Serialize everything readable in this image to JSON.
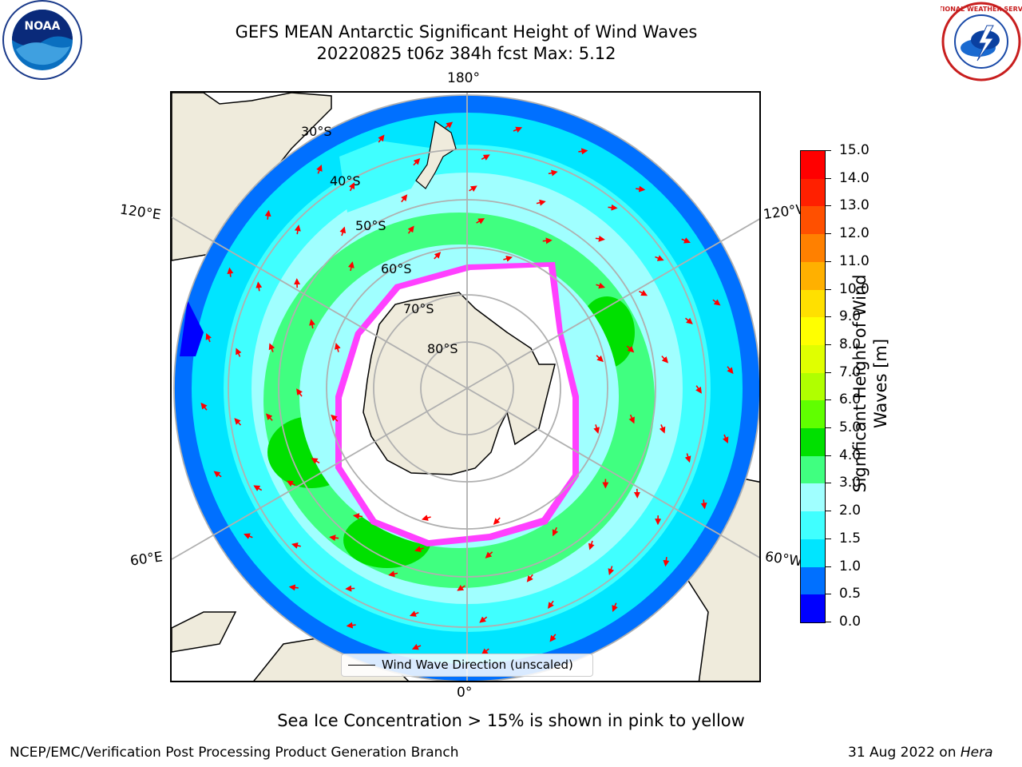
{
  "title_line1": "GEFS MEAN Antarctic Significant Height of Wind Waves",
  "title_line2": "20220825 t06z 384h fcst   Max: 5.12",
  "noaa_logo_text": "NOAA",
  "nws_logo_text": "NATIONAL WEATHER SERVICE",
  "longitude_labels": {
    "top": "180°",
    "bottom": "0°",
    "upper_left": "120°E",
    "upper_right": "120°W",
    "lower_left": "60°E",
    "lower_right": "60°W"
  },
  "latitude_labels": [
    "30°S",
    "40°S",
    "50°S",
    "60°S",
    "70°S",
    "80°S"
  ],
  "legend_label": "Wind Wave Direction (unscaled)",
  "colorbar": {
    "label": "Significant Height of Wind Waves [m]",
    "ticks": [
      "0.0",
      "0.5",
      "1.0",
      "1.5",
      "2.0",
      "3.0",
      "4.0",
      "5.0",
      "6.0",
      "7.0",
      "8.0",
      "9.0",
      "10.0",
      "11.0",
      "12.0",
      "13.0",
      "14.0",
      "15.0"
    ],
    "colors": [
      "#0000ff",
      "#0070ff",
      "#00e5ff",
      "#40ffff",
      "#a0ffff",
      "#40ff80",
      "#00e000",
      "#60ff00",
      "#b0ff00",
      "#e0ff00",
      "#ffff00",
      "#ffe000",
      "#ffb000",
      "#ff8000",
      "#ff5000",
      "#ff2000",
      "#ff0000"
    ]
  },
  "caption": "Sea Ice Concentration > 15% is shown in pink to yellow",
  "footer_left": "NCEP/EMC/Verification Post Processing Product Generation Branch",
  "footer_right_date": "31 Aug 2022 on ",
  "footer_right_machine": "Hera"
}
